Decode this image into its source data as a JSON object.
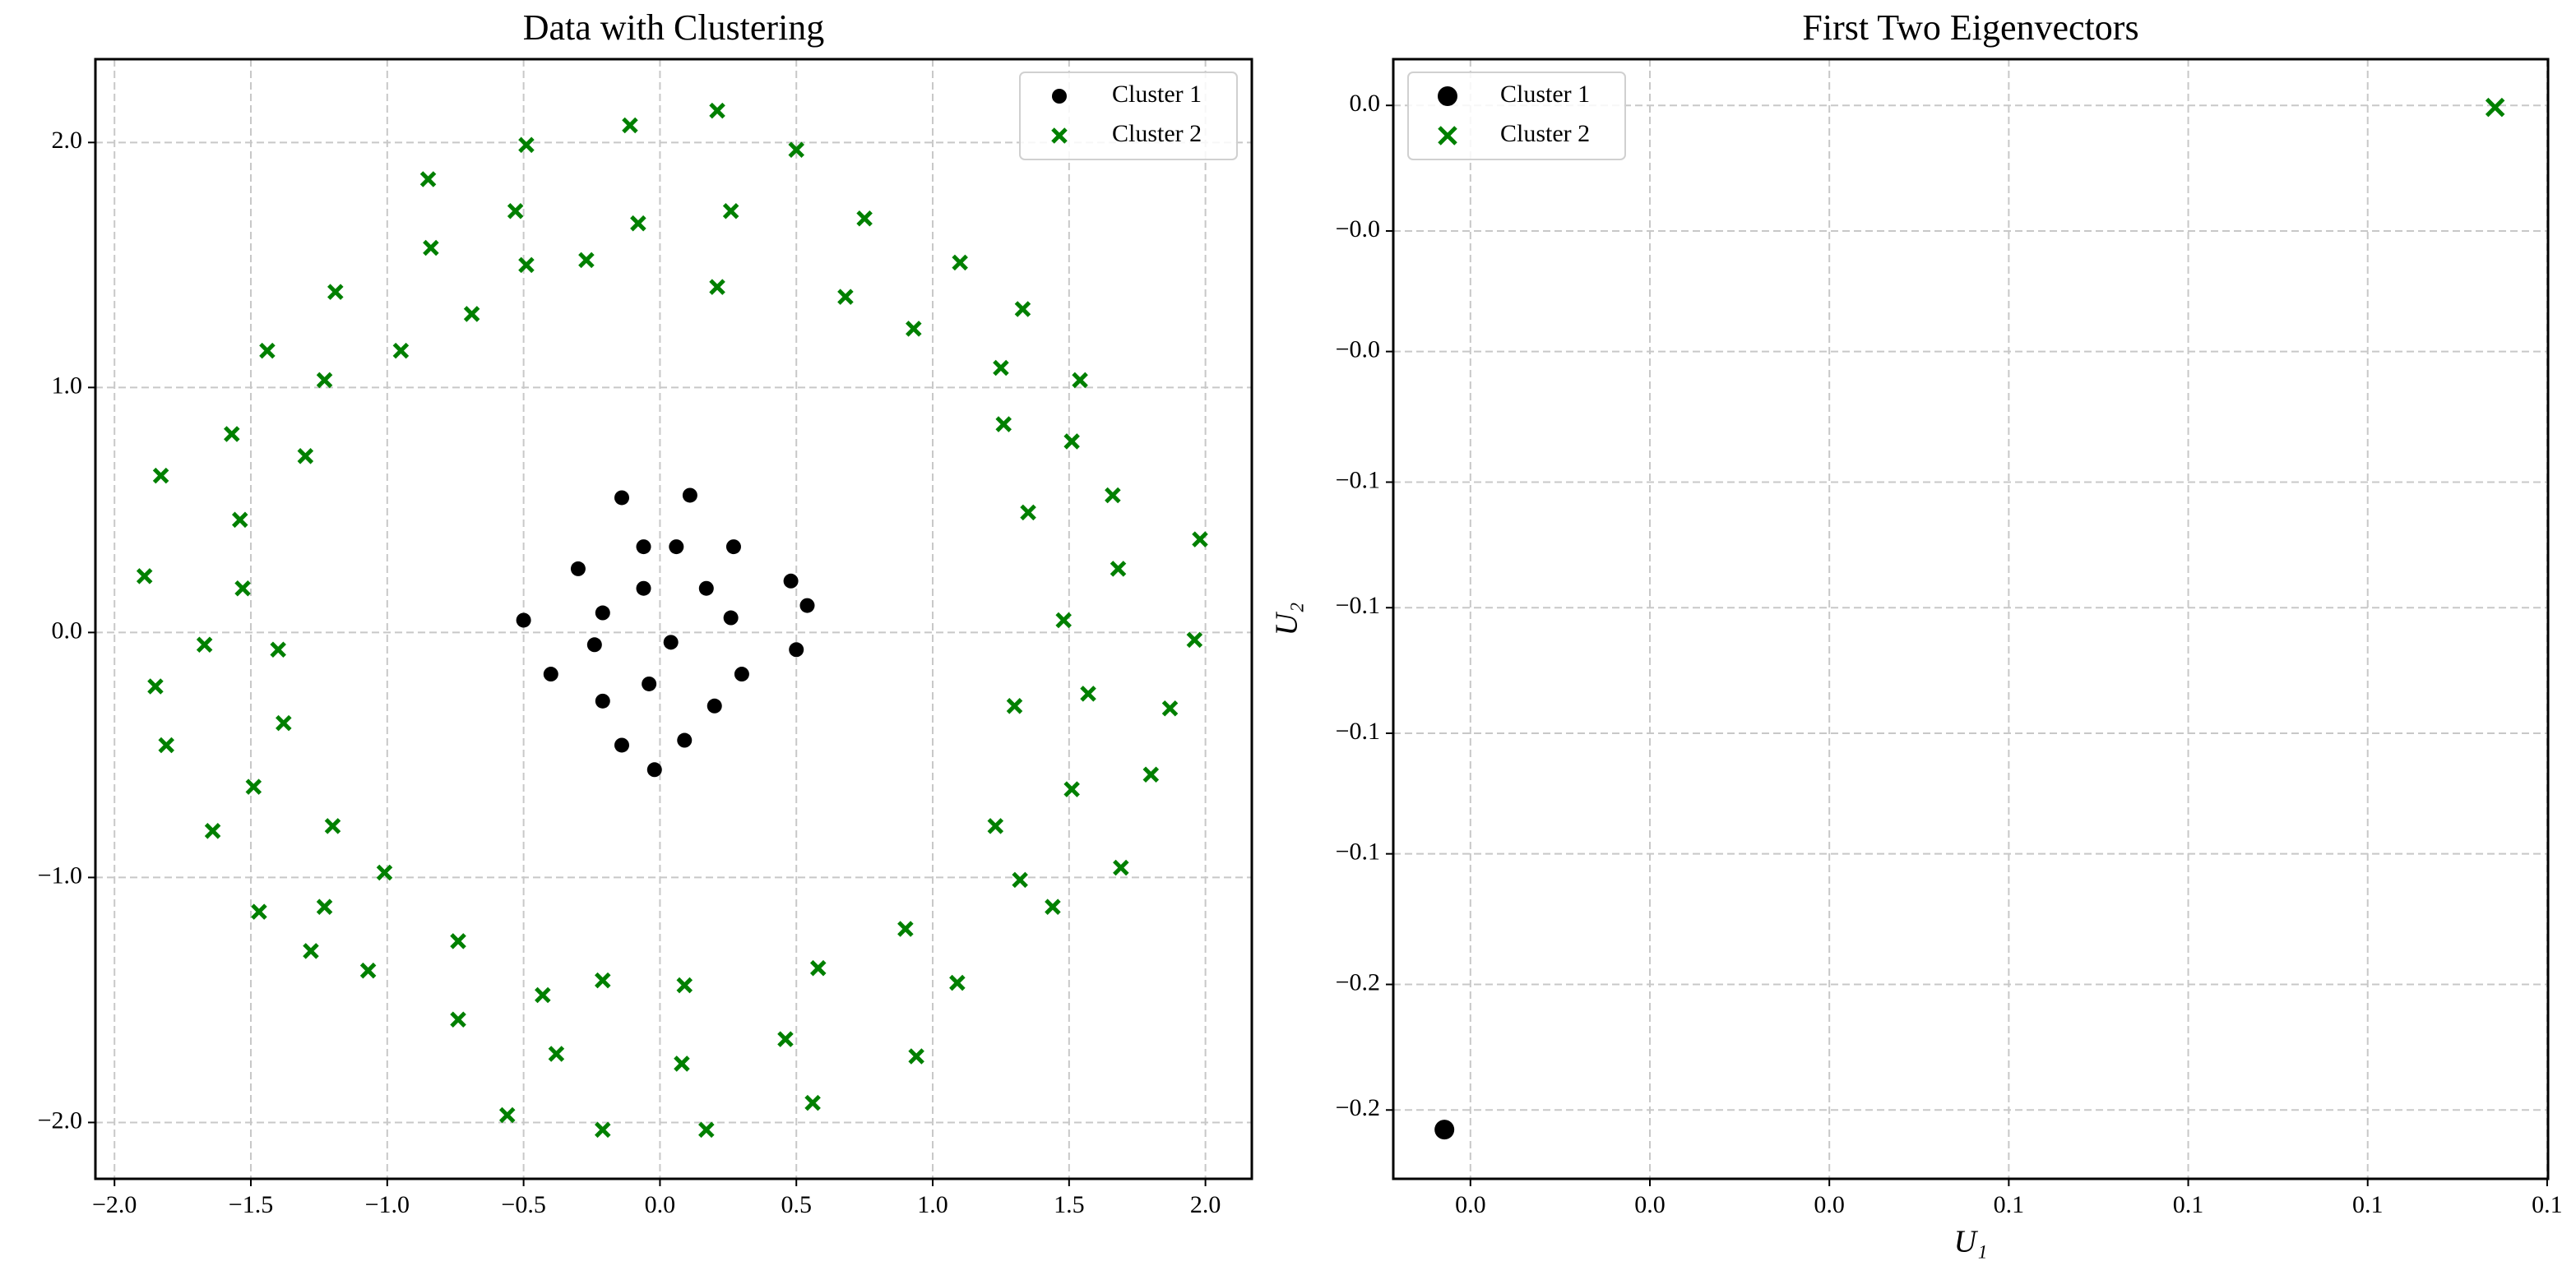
{
  "chart_data": [
    {
      "type": "scatter",
      "title": "Data with Clustering",
      "legend": "upper right",
      "grid": true,
      "xlim": [
        -2.07,
        2.17
      ],
      "ylim": [
        -2.23,
        2.34
      ],
      "xticks": [
        {
          "value": -2.0,
          "label": "−2.0"
        },
        {
          "value": -1.5,
          "label": "−1.5"
        },
        {
          "value": -1.0,
          "label": "−1.0"
        },
        {
          "value": -0.5,
          "label": "−0.5"
        },
        {
          "value": 0,
          "label": "0.0"
        },
        {
          "value": 0.5,
          "label": "0.5"
        },
        {
          "value": 1.0,
          "label": "1.0"
        },
        {
          "value": 1.5,
          "label": "1.5"
        },
        {
          "value": 2.0,
          "label": "2.0"
        }
      ],
      "yticks": [
        {
          "value": -2.0,
          "label": "−2.0"
        },
        {
          "value": -1.0,
          "label": "−1.0"
        },
        {
          "value": 0,
          "label": "0.0"
        },
        {
          "value": 1.0,
          "label": "1.0"
        },
        {
          "value": 2.0,
          "label": "2.0"
        }
      ],
      "series": [
        {
          "name": "Cluster 1",
          "color": "#000000",
          "marker": "o",
          "x": [
            -0.14,
            0.11,
            -0.3,
            -0.06,
            0.06,
            0.27,
            0.48,
            -0.06,
            0.17,
            -0.21,
            -0.5,
            0.26,
            0.54,
            -0.24,
            0.04,
            -0.4,
            0.5,
            -0.04,
            0.3,
            -0.21,
            0.2,
            -0.14,
            0.09,
            -0.02
          ],
          "values": [
            0.55,
            0.56,
            0.26,
            0.35,
            0.35,
            0.35,
            0.21,
            0.18,
            0.18,
            0.08,
            0.05,
            0.06,
            0.11,
            -0.05,
            -0.04,
            -0.17,
            -0.07,
            -0.21,
            -0.17,
            -0.28,
            -0.3,
            -0.46,
            -0.44,
            -0.56
          ]
        },
        {
          "name": "Cluster 2",
          "color": "#008000",
          "marker": "x",
          "x": [
            0.21,
            -0.11,
            -0.49,
            0.5,
            -0.85,
            0.26,
            -0.53,
            -0.08,
            0.75,
            -0.84,
            -0.49,
            -0.27,
            1.1,
            0.21,
            -1.19,
            0.68,
            -0.69,
            1.33,
            0.93,
            -1.44,
            -0.95,
            1.25,
            -1.23,
            1.54,
            -1.57,
            1.26,
            -1.3,
            1.51,
            -1.83,
            1.66,
            -1.54,
            1.35,
            1.98,
            -1.53,
            -1.89,
            1.68,
            1.48,
            -1.67,
            -1.4,
            1.96,
            -1.85,
            1.57,
            1.3,
            -1.38,
            1.87,
            -1.81,
            1.8,
            -1.49,
            1.51,
            -1.64,
            -1.2,
            1.23,
            1.69,
            -1.01,
            1.32,
            -1.47,
            -1.23,
            1.44,
            0.9,
            -1.28,
            -0.74,
            1.09,
            -1.07,
            0.58,
            -0.43,
            -0.21,
            0.09,
            -0.74,
            -0.38,
            0.94,
            0.46,
            0.08,
            0.56,
            -0.56,
            -0.21,
            0.17
          ],
          "values": [
            2.13,
            2.07,
            1.99,
            1.97,
            1.85,
            1.72,
            1.72,
            1.67,
            1.69,
            1.57,
            1.5,
            1.52,
            1.51,
            1.41,
            1.39,
            1.37,
            1.3,
            1.32,
            1.24,
            1.15,
            1.15,
            1.08,
            1.03,
            1.03,
            0.81,
            0.85,
            0.72,
            0.78,
            0.64,
            0.56,
            0.46,
            0.49,
            0.38,
            0.18,
            0.23,
            0.26,
            0.05,
            -0.05,
            -0.07,
            -0.03,
            -0.22,
            -0.25,
            -0.3,
            -0.37,
            -0.31,
            -0.46,
            -0.58,
            -0.63,
            -0.64,
            -0.81,
            -0.79,
            -0.79,
            -0.96,
            -0.98,
            -1.01,
            -1.14,
            -1.12,
            -1.12,
            -1.21,
            -1.3,
            -1.26,
            -1.43,
            -1.38,
            -1.37,
            -1.48,
            -1.42,
            -1.44,
            -1.58,
            -1.72,
            -1.73,
            -1.66,
            -1.76,
            -1.92,
            -1.97,
            -2.03,
            -2.03
          ]
        }
      ]
    },
    {
      "type": "scatter",
      "title": "First Two Eigenvectors",
      "legend": "upper left",
      "grid": true,
      "xlabel": "U₁",
      "ylabel": "U₂",
      "xlim": [
        -0.0086,
        0.1201
      ],
      "ylim": [
        -0.2137,
        0.0092
      ],
      "xticks": [
        {
          "value": 0,
          "label": "0.0"
        },
        {
          "value": 0.02,
          "label": "0.0"
        },
        {
          "value": 0.04,
          "label": "0.0"
        },
        {
          "value": 0.06,
          "label": "0.1"
        },
        {
          "value": 0.08,
          "label": "0.1"
        },
        {
          "value": 0.1,
          "label": "0.1"
        },
        {
          "value": 0.12,
          "label": "0.1"
        }
      ],
      "yticks": [
        {
          "value": 0,
          "label": "0.0"
        },
        {
          "value": -0.025,
          "label": "−0.0"
        },
        {
          "value": -0.049,
          "label": "−0.0"
        },
        {
          "value": -0.075,
          "label": "−0.1"
        },
        {
          "value": -0.1,
          "label": "−0.1"
        },
        {
          "value": -0.125,
          "label": "−0.1"
        },
        {
          "value": -0.149,
          "label": "−0.1"
        },
        {
          "value": -0.175,
          "label": "−0.2"
        },
        {
          "value": -0.2,
          "label": "−0.2"
        }
      ],
      "series": [
        {
          "name": "Cluster 1",
          "color": "#000000",
          "marker": "o",
          "x": [
            -0.0029
          ],
          "values": [
            -0.2039
          ]
        },
        {
          "name": "Cluster 2",
          "color": "#008000",
          "marker": "x",
          "x": [
            0.1142
          ],
          "values": [
            -0.0004
          ]
        }
      ]
    }
  ]
}
